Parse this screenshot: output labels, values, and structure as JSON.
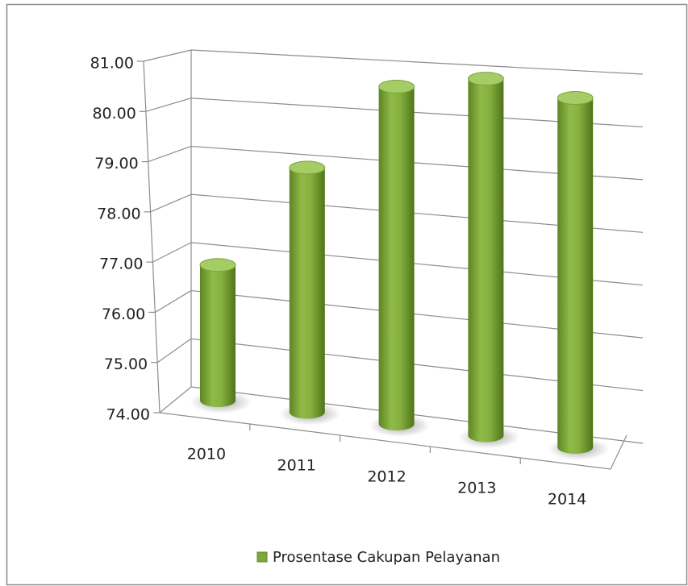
{
  "chart_data": {
    "type": "bar3d",
    "categories": [
      "2010",
      "2011",
      "2012",
      "2013",
      "2014"
    ],
    "series": [
      {
        "name": "Prosentase Cakupan Pelayanan",
        "color": "#7fa83c",
        "values": [
          76.9,
          79.0,
          80.6,
          80.7,
          80.3
        ]
      }
    ],
    "ylim": [
      74,
      81
    ],
    "yticks": [
      {
        "value": 74,
        "label": "74.00"
      },
      {
        "value": 75,
        "label": "75.00"
      },
      {
        "value": 76,
        "label": "76.00"
      },
      {
        "value": 77,
        "label": "77.00"
      },
      {
        "value": 78,
        "label": "78.00"
      },
      {
        "value": 79,
        "label": "79.00"
      },
      {
        "value": 80,
        "label": "80.00"
      },
      {
        "value": 81,
        "label": "81.00"
      }
    ],
    "grid": true,
    "legend": "bottom"
  }
}
